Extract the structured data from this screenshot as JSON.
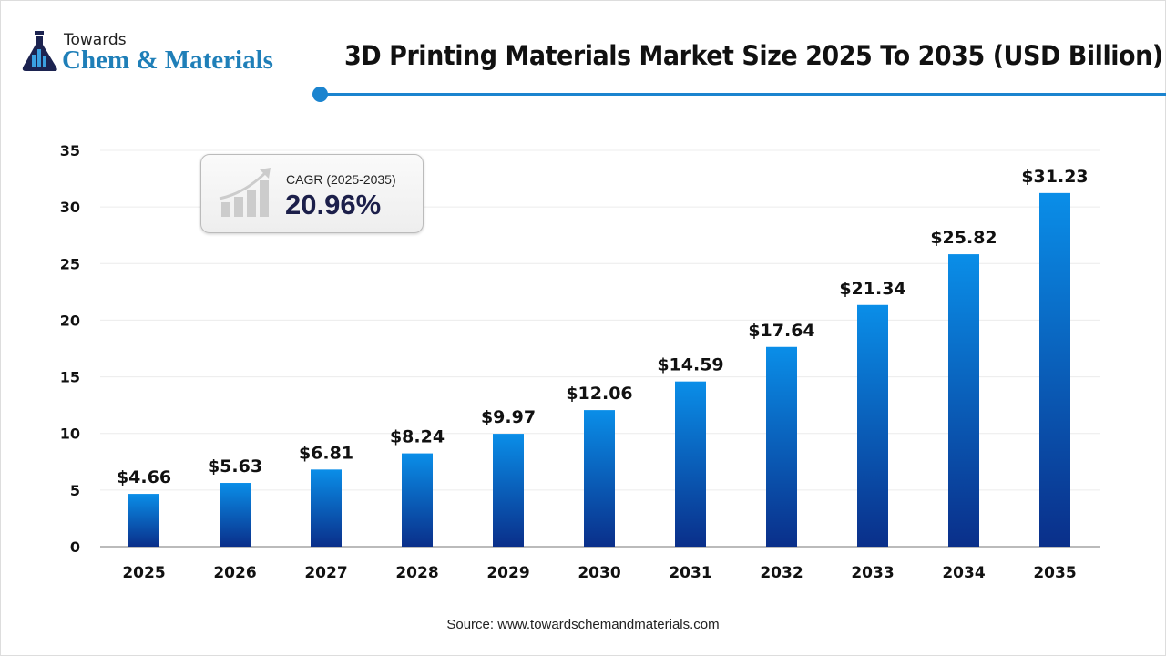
{
  "logo": {
    "line1": "Towards",
    "line2": "Chem & Materials"
  },
  "title": "3D Printing Materials Market Size 2025 To 2035 (USD Billion)",
  "cagr": {
    "label": "CAGR (2025-2035)",
    "value": "20.96%",
    "icon": "growth-chart-icon"
  },
  "source": "Source: www.towardschemandmaterials.com",
  "colors": {
    "bar_top": "#0a8ee8",
    "bar_bottom": "#0a2f8a",
    "accent": "#1b84cf"
  },
  "chart_data": {
    "type": "bar",
    "categories": [
      "2025",
      "2026",
      "2027",
      "2028",
      "2029",
      "2030",
      "2031",
      "2032",
      "2033",
      "2034",
      "2035"
    ],
    "values": [
      4.66,
      5.63,
      6.81,
      8.24,
      9.97,
      12.06,
      14.59,
      17.64,
      21.34,
      25.82,
      31.23
    ],
    "data_labels": [
      "$4.66",
      "$5.63",
      "$6.81",
      "$8.24",
      "$9.97",
      "$12.06",
      "$14.59",
      "$17.64",
      "$21.34",
      "$25.82",
      "$31.23"
    ],
    "yticks": [
      0,
      5,
      10,
      15,
      20,
      25,
      30,
      35
    ],
    "ylim": [
      0,
      35
    ],
    "grid": true,
    "title": "3D Printing Materials Market Size 2025 To 2035 (USD Billion)"
  }
}
